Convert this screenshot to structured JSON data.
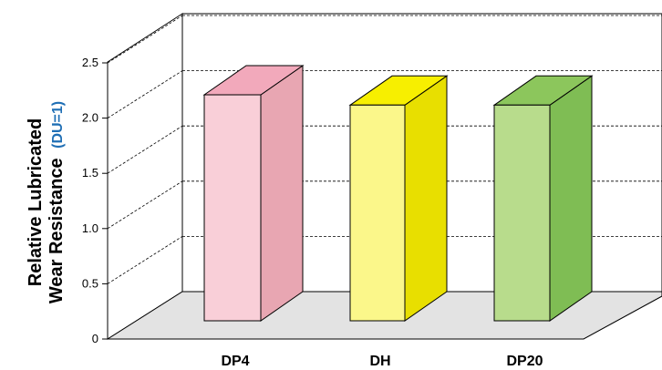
{
  "chart_data": {
    "type": "bar",
    "style": "3d",
    "categories": [
      "DP4",
      "DH",
      "DP20"
    ],
    "values": [
      2.2,
      2.1,
      2.1
    ],
    "ylabel_line1": "Relative Lubricated",
    "ylabel_line2": "Wear Resistance",
    "ylabel_unit": "(DU=1)",
    "ylim": [
      0,
      2.5
    ],
    "yticks": [
      "0",
      "0.5",
      "1.0",
      "1.5",
      "2.0",
      "2.5"
    ],
    "grid": true,
    "colors": {
      "DP4": {
        "front": "#f9cfd8",
        "side": "#e8a6b2",
        "top": "#f2a9bb"
      },
      "DH": {
        "front": "#fbf78a",
        "side": "#e8df00",
        "top": "#f7ef00"
      },
      "DP20": {
        "front": "#b8dc8c",
        "side": "#7fbd54",
        "top": "#8cc65c"
      }
    }
  }
}
